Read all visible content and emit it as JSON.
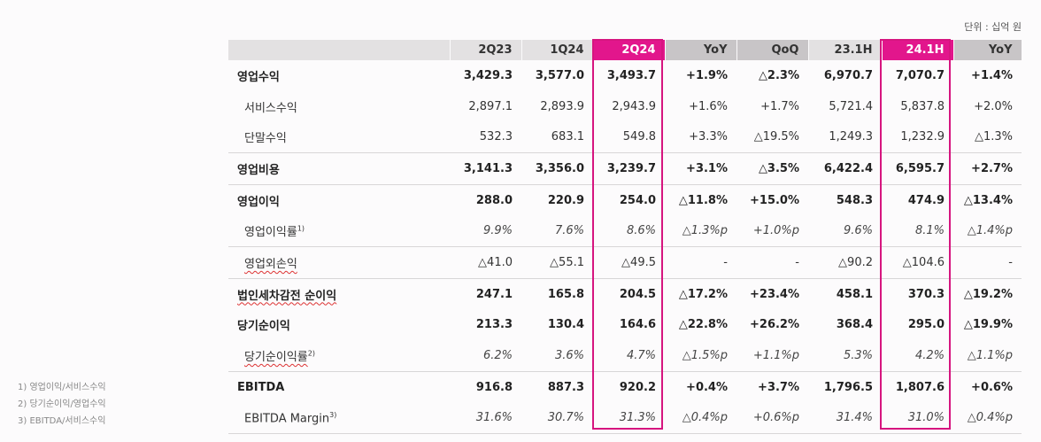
{
  "unit_label": "단위 : 십억 원",
  "footnotes": [
    "1) 영업이익/서비스수익",
    "2) 당기순이익/영업수익",
    "3) EBITDA/서비스수익"
  ],
  "columns": [
    "",
    "2Q23",
    "1Q24",
    "2Q24",
    "YoY",
    "QoQ",
    "23.1H",
    "24.1H",
    "YoY"
  ],
  "highlight_color": "#e2168c",
  "rows": [
    {
      "label": "영업수익",
      "sup": "",
      "values": [
        "3,429.3",
        "3,577.0",
        "3,493.7",
        "+1.9%",
        "△2.3%",
        "6,970.7",
        "7,070.7",
        "+1.4%"
      ]
    },
    {
      "label": "서비스수익",
      "sup": "",
      "values": [
        "2,897.1",
        "2,893.9",
        "2,943.9",
        "+1.6%",
        "+1.7%",
        "5,721.4",
        "5,837.8",
        "+2.0%"
      ]
    },
    {
      "label": "단말수익",
      "sup": "",
      "values": [
        "532.3",
        "683.1",
        "549.8",
        "+3.3%",
        "△19.5%",
        "1,249.3",
        "1,232.9",
        "△1.3%"
      ]
    },
    {
      "label": "영업비용",
      "sup": "",
      "values": [
        "3,141.3",
        "3,356.0",
        "3,239.7",
        "+3.1%",
        "△3.5%",
        "6,422.4",
        "6,595.7",
        "+2.7%"
      ]
    },
    {
      "label": "영업이익",
      "sup": "",
      "values": [
        "288.0",
        "220.9",
        "254.0",
        "△11.8%",
        "+15.0%",
        "548.3",
        "474.9",
        "△13.4%"
      ]
    },
    {
      "label": "영업이익률",
      "sup": "1)",
      "values": [
        "9.9%",
        "7.6%",
        "8.6%",
        "△1.3%p",
        "+1.0%p",
        "9.6%",
        "8.1%",
        "△1.4%p"
      ]
    },
    {
      "label": "영업외손익",
      "sup": "",
      "values": [
        "△41.0",
        "△55.1",
        "△49.5",
        "-",
        "-",
        "△90.2",
        "△104.6",
        "-"
      ]
    },
    {
      "label": "법인세차감전 순이익",
      "sup": "",
      "values": [
        "247.1",
        "165.8",
        "204.5",
        "△17.2%",
        "+23.4%",
        "458.1",
        "370.3",
        "△19.2%"
      ]
    },
    {
      "label": "당기순이익",
      "sup": "",
      "values": [
        "213.3",
        "130.4",
        "164.6",
        "△22.8%",
        "+26.2%",
        "368.4",
        "295.0",
        "△19.9%"
      ]
    },
    {
      "label": "당기순이익률",
      "sup": "2)",
      "values": [
        "6.2%",
        "3.6%",
        "4.7%",
        "△1.5%p",
        "+1.1%p",
        "5.3%",
        "4.2%",
        "△1.1%p"
      ]
    },
    {
      "label": "EBITDA",
      "sup": "",
      "values": [
        "916.8",
        "887.3",
        "920.2",
        "+0.4%",
        "+3.7%",
        "1,796.5",
        "1,807.6",
        "+0.6%"
      ]
    },
    {
      "label": "EBITDA Margin",
      "sup": "3)",
      "values": [
        "31.6%",
        "30.7%",
        "31.3%",
        "△0.4%p",
        "+0.6%p",
        "31.4%",
        "31.0%",
        "△0.4%p"
      ]
    }
  ]
}
